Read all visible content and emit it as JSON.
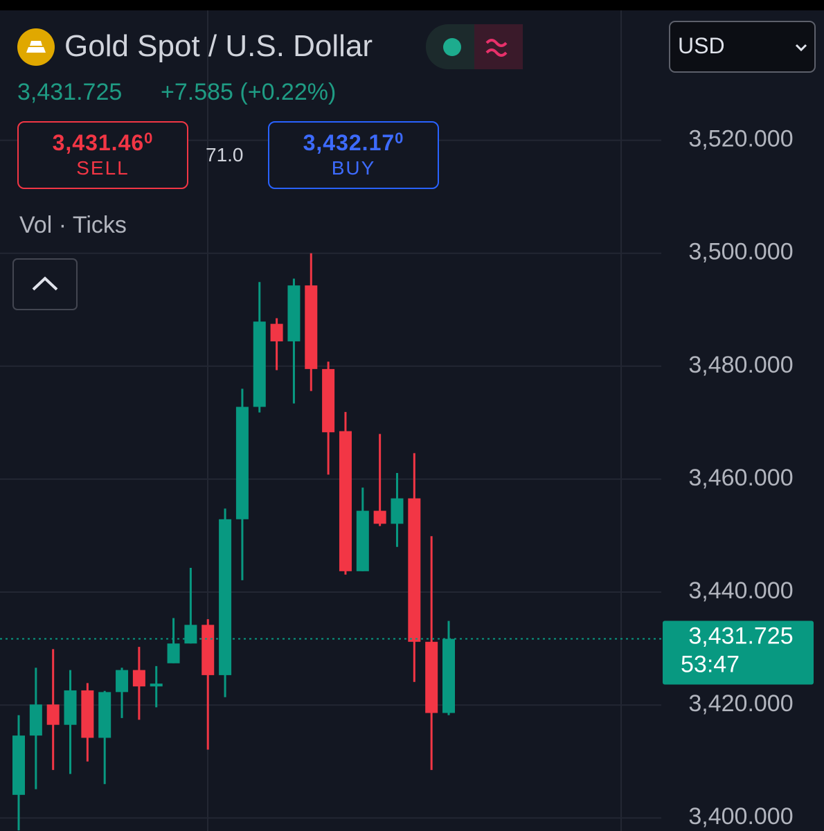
{
  "header": {
    "title": "Gold Spot / U.S. Dollar",
    "price": "3,431.725",
    "change": "+7.585 (+0.22%)",
    "sell_price": "3,431.46",
    "sell_fraction": "0",
    "sell_label": "SELL",
    "spread": "71.0",
    "buy_price": "3,432.17",
    "buy_fraction": "0",
    "buy_label": "BUY",
    "indicator": "Vol · Ticks",
    "currency": "USD"
  },
  "chart_data": {
    "type": "candlestick",
    "categories": [
      null,
      null,
      null,
      null,
      null,
      null,
      null,
      null,
      null,
      null,
      null,
      null,
      null,
      null,
      null,
      null,
      null,
      null,
      null,
      null,
      null,
      null,
      null,
      null,
      null,
      null
    ],
    "open": [
      3404.1,
      3414.6,
      3420.1,
      3416.5,
      3422.6,
      3414.2,
      3422.3,
      3426.2,
      3423.3,
      3427.4,
      3430.9,
      3434.2,
      3425.3,
      3452.9,
      3472.8,
      3487.5,
      3484.4,
      3494.3,
      3479.5,
      3468.5,
      3443.7,
      3454.4,
      3452.1,
      3456.6,
      3431.2,
      3418.6
    ],
    "high": [
      3418.2,
      3426.6,
      3429.9,
      3426.2,
      3423.9,
      3422.5,
      3426.6,
      3430.3,
      3426.9,
      3435.4,
      3444.3,
      3435.2,
      3454.8,
      3476.0,
      3494.9,
      3488.5,
      3495.5,
      3500.0,
      3480.8,
      3471.9,
      3458.5,
      3468.0,
      3461.1,
      3464.6,
      3449.9,
      3434.9
    ],
    "low": [
      3397.8,
      3405.1,
      3408.5,
      3407.8,
      3410.0,
      3406.0,
      3417.7,
      3417.4,
      3419.6,
      3427.4,
      3430.9,
      3412.1,
      3421.4,
      3442.1,
      3471.8,
      3479.3,
      3473.4,
      3475.6,
      3460.8,
      3443.1,
      3443.7,
      3451.7,
      3448.0,
      3424.1,
      3408.5,
      3418.2
    ],
    "close": [
      3414.6,
      3420.1,
      3416.5,
      3422.6,
      3414.2,
      3422.3,
      3426.2,
      3423.3,
      3423.8,
      3430.9,
      3434.2,
      3425.3,
      3452.9,
      3472.8,
      3487.9,
      3484.4,
      3494.3,
      3479.5,
      3468.3,
      3443.7,
      3454.4,
      3452.1,
      3456.6,
      3431.2,
      3418.6,
      3431.725
    ],
    "up_color": "#089981",
    "down_color": "#f23645",
    "ylim": [
      3397.7,
      3543
    ],
    "yticks": [
      {
        "value": 3400,
        "label": "3,400.000"
      },
      {
        "value": 3420,
        "label": "3,420.000"
      },
      {
        "value": 3440,
        "label": "3,440.000"
      },
      {
        "value": 3460,
        "label": "3,460.000"
      },
      {
        "value": 3480,
        "label": "3,480.000"
      },
      {
        "value": 3500,
        "label": "3,500.000"
      },
      {
        "value": 3520,
        "label": "3,520.000"
      }
    ],
    "grid": true,
    "last_price": {
      "value": 3431.725,
      "label": "3,431.725"
    },
    "countdown": "53:47"
  }
}
